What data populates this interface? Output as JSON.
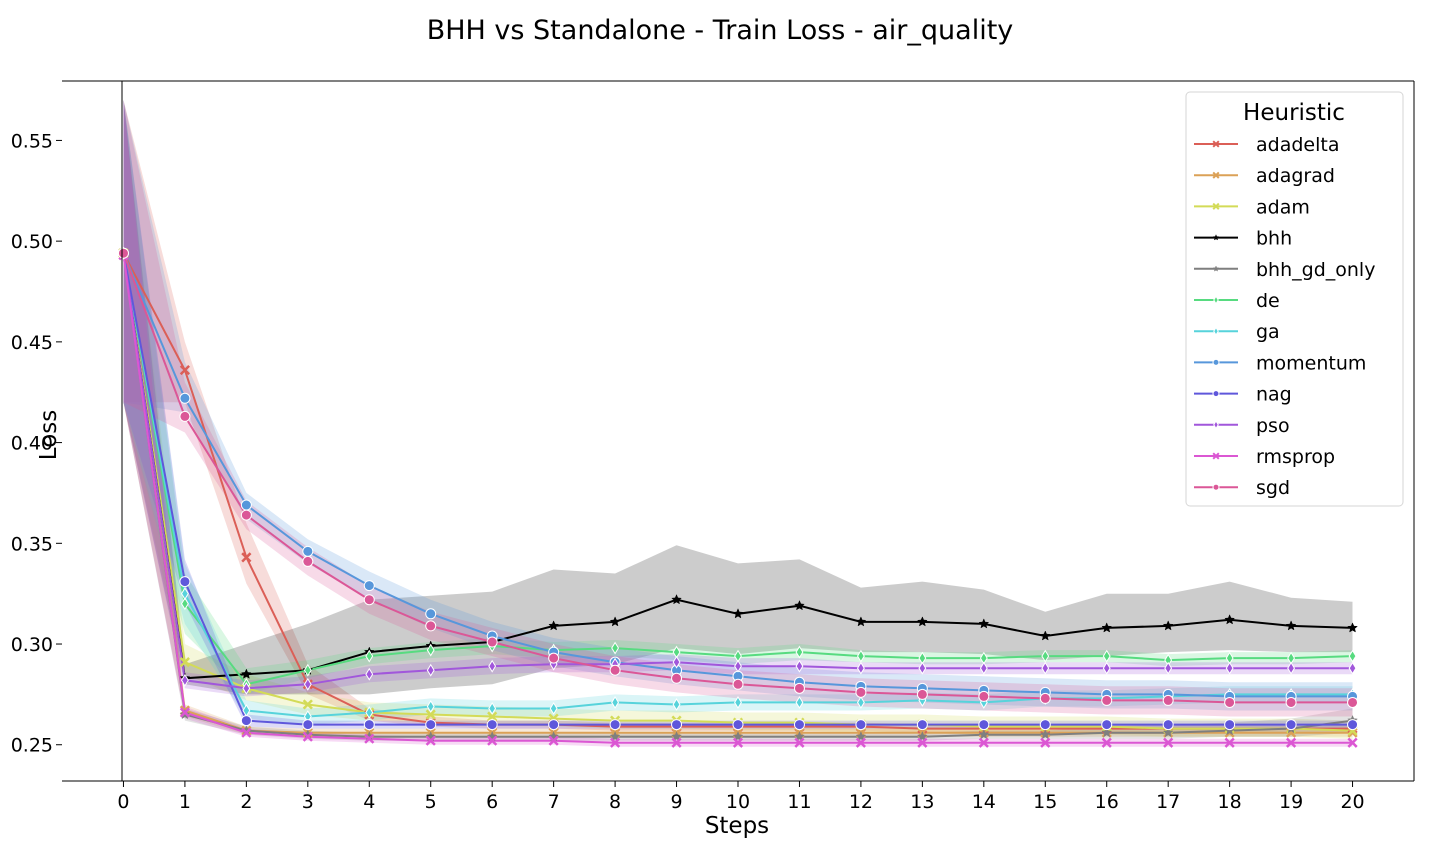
{
  "chart_data": {
    "type": "line",
    "title": "BHH vs Standalone - Train Loss - air_quality",
    "xlabel": "Steps",
    "ylabel": "Loss",
    "x": [
      0,
      1,
      2,
      3,
      4,
      5,
      6,
      7,
      8,
      9,
      10,
      11,
      12,
      13,
      14,
      15,
      16,
      17,
      18,
      19,
      20
    ],
    "xlim": [
      -1,
      21
    ],
    "ylim": [
      0.232,
      0.5795
    ],
    "yticks": [
      0.25,
      0.3,
      0.35,
      0.4,
      0.45,
      0.5,
      0.55
    ],
    "ytick_labels": [
      "0.25",
      "0.30",
      "0.35",
      "0.40",
      "0.45",
      "0.50",
      "0.55"
    ],
    "legend_title": "Heuristic",
    "legend_position": "top-right",
    "series": [
      {
        "name": "adadelta",
        "color": "#db5f57",
        "marker": "x",
        "values": [
          0.494,
          0.436,
          0.343,
          0.28,
          0.265,
          0.261,
          0.26,
          0.26,
          0.259,
          0.259,
          0.259,
          0.259,
          0.259,
          0.258,
          0.258,
          0.258,
          0.258,
          0.258,
          0.258,
          0.258,
          0.258
        ],
        "lower": [
          0.42,
          0.42,
          0.33,
          0.275,
          0.262,
          0.259,
          0.258,
          0.258,
          0.257,
          0.257,
          0.257,
          0.257,
          0.257,
          0.256,
          0.256,
          0.256,
          0.256,
          0.256,
          0.256,
          0.256,
          0.256
        ],
        "upper": [
          0.57,
          0.45,
          0.36,
          0.29,
          0.268,
          0.264,
          0.262,
          0.262,
          0.261,
          0.261,
          0.261,
          0.261,
          0.261,
          0.26,
          0.26,
          0.26,
          0.26,
          0.26,
          0.26,
          0.26,
          0.26
        ]
      },
      {
        "name": "adagrad",
        "color": "#dba157",
        "marker": "x",
        "values": [
          0.494,
          0.267,
          0.257,
          0.256,
          0.256,
          0.256,
          0.256,
          0.256,
          0.256,
          0.256,
          0.256,
          0.256,
          0.256,
          0.256,
          0.256,
          0.256,
          0.256,
          0.256,
          0.256,
          0.256,
          0.256
        ],
        "lower": [
          0.42,
          0.264,
          0.255,
          0.254,
          0.254,
          0.254,
          0.254,
          0.254,
          0.254,
          0.254,
          0.254,
          0.254,
          0.254,
          0.254,
          0.254,
          0.254,
          0.254,
          0.254,
          0.254,
          0.254,
          0.254
        ],
        "upper": [
          0.57,
          0.27,
          0.259,
          0.258,
          0.258,
          0.258,
          0.258,
          0.258,
          0.258,
          0.258,
          0.258,
          0.258,
          0.258,
          0.258,
          0.258,
          0.258,
          0.258,
          0.258,
          0.258,
          0.258,
          0.258
        ]
      },
      {
        "name": "adam",
        "color": "#d3db57",
        "marker": "x",
        "values": [
          0.494,
          0.291,
          0.278,
          0.27,
          0.266,
          0.265,
          0.264,
          0.263,
          0.262,
          0.262,
          0.261,
          0.261,
          0.26,
          0.26,
          0.259,
          0.259,
          0.259,
          0.258,
          0.258,
          0.258,
          0.257
        ],
        "lower": [
          0.42,
          0.285,
          0.272,
          0.265,
          0.262,
          0.261,
          0.26,
          0.259,
          0.258,
          0.258,
          0.257,
          0.257,
          0.256,
          0.256,
          0.255,
          0.255,
          0.255,
          0.254,
          0.254,
          0.254,
          0.253
        ],
        "upper": [
          0.57,
          0.3,
          0.285,
          0.276,
          0.271,
          0.27,
          0.269,
          0.268,
          0.267,
          0.267,
          0.266,
          0.266,
          0.265,
          0.265,
          0.264,
          0.264,
          0.264,
          0.263,
          0.263,
          0.263,
          0.262
        ]
      },
      {
        "name": "bhh",
        "color": "#000000",
        "marker": "star",
        "values": [
          0.494,
          0.283,
          0.285,
          0.287,
          0.296,
          0.299,
          0.301,
          0.309,
          0.311,
          0.322,
          0.315,
          0.319,
          0.311,
          0.311,
          0.31,
          0.304,
          0.308,
          0.309,
          0.312,
          0.309,
          0.308
        ],
        "lower": [
          0.42,
          0.28,
          0.275,
          0.275,
          0.275,
          0.278,
          0.28,
          0.288,
          0.29,
          0.298,
          0.295,
          0.298,
          0.296,
          0.296,
          0.295,
          0.292,
          0.294,
          0.296,
          0.297,
          0.296,
          0.296
        ],
        "upper": [
          0.57,
          0.29,
          0.3,
          0.31,
          0.322,
          0.324,
          0.326,
          0.337,
          0.335,
          0.349,
          0.34,
          0.342,
          0.328,
          0.331,
          0.327,
          0.316,
          0.325,
          0.325,
          0.331,
          0.323,
          0.321
        ]
      },
      {
        "name": "bhh_gd_only",
        "color": "#7f7f7f",
        "marker": "star",
        "values": [
          0.494,
          0.265,
          0.257,
          0.255,
          0.254,
          0.254,
          0.254,
          0.254,
          0.254,
          0.254,
          0.254,
          0.254,
          0.254,
          0.254,
          0.255,
          0.255,
          0.256,
          0.256,
          0.257,
          0.258,
          0.262
        ],
        "lower": [
          0.42,
          0.262,
          0.255,
          0.253,
          0.252,
          0.252,
          0.252,
          0.252,
          0.252,
          0.252,
          0.252,
          0.252,
          0.252,
          0.252,
          0.253,
          0.253,
          0.253,
          0.253,
          0.254,
          0.254,
          0.256
        ],
        "upper": [
          0.57,
          0.268,
          0.259,
          0.257,
          0.256,
          0.256,
          0.256,
          0.256,
          0.256,
          0.256,
          0.256,
          0.256,
          0.256,
          0.256,
          0.257,
          0.257,
          0.259,
          0.26,
          0.261,
          0.263,
          0.268
        ]
      },
      {
        "name": "de",
        "color": "#57db80",
        "marker": "diamond",
        "values": [
          0.494,
          0.32,
          0.28,
          0.287,
          0.294,
          0.297,
          0.299,
          0.297,
          0.298,
          0.296,
          0.294,
          0.296,
          0.294,
          0.293,
          0.293,
          0.294,
          0.294,
          0.292,
          0.293,
          0.293,
          0.294
        ],
        "lower": [
          0.42,
          0.305,
          0.275,
          0.283,
          0.29,
          0.293,
          0.295,
          0.293,
          0.294,
          0.292,
          0.29,
          0.292,
          0.291,
          0.29,
          0.29,
          0.291,
          0.291,
          0.289,
          0.29,
          0.29,
          0.291
        ],
        "upper": [
          0.57,
          0.335,
          0.288,
          0.292,
          0.298,
          0.301,
          0.303,
          0.301,
          0.302,
          0.3,
          0.298,
          0.3,
          0.297,
          0.296,
          0.296,
          0.297,
          0.297,
          0.295,
          0.296,
          0.296,
          0.297
        ]
      },
      {
        "name": "ga",
        "color": "#57d3db",
        "marker": "diamond",
        "values": [
          0.494,
          0.325,
          0.267,
          0.264,
          0.266,
          0.269,
          0.268,
          0.268,
          0.271,
          0.27,
          0.271,
          0.271,
          0.271,
          0.272,
          0.271,
          0.273,
          0.273,
          0.274,
          0.275,
          0.275,
          0.275
        ],
        "lower": [
          0.42,
          0.31,
          0.263,
          0.26,
          0.262,
          0.265,
          0.264,
          0.264,
          0.267,
          0.266,
          0.267,
          0.267,
          0.267,
          0.268,
          0.267,
          0.269,
          0.269,
          0.27,
          0.271,
          0.271,
          0.271
        ],
        "upper": [
          0.57,
          0.34,
          0.272,
          0.268,
          0.27,
          0.273,
          0.272,
          0.272,
          0.275,
          0.274,
          0.275,
          0.275,
          0.275,
          0.276,
          0.275,
          0.277,
          0.277,
          0.278,
          0.279,
          0.279,
          0.279
        ]
      },
      {
        "name": "momentum",
        "color": "#5797db",
        "marker": "circle",
        "values": [
          0.494,
          0.422,
          0.369,
          0.346,
          0.329,
          0.315,
          0.304,
          0.296,
          0.291,
          0.287,
          0.284,
          0.281,
          0.279,
          0.278,
          0.277,
          0.276,
          0.275,
          0.275,
          0.274,
          0.274,
          0.274
        ],
        "lower": [
          0.42,
          0.415,
          0.362,
          0.34,
          0.322,
          0.308,
          0.297,
          0.289,
          0.284,
          0.28,
          0.277,
          0.274,
          0.272,
          0.271,
          0.27,
          0.269,
          0.268,
          0.268,
          0.267,
          0.267,
          0.267
        ],
        "upper": [
          0.57,
          0.44,
          0.375,
          0.352,
          0.336,
          0.322,
          0.311,
          0.303,
          0.298,
          0.294,
          0.291,
          0.288,
          0.286,
          0.285,
          0.284,
          0.283,
          0.282,
          0.282,
          0.281,
          0.281,
          0.281
        ]
      },
      {
        "name": "nag",
        "color": "#5f57db",
        "marker": "circle",
        "values": [
          0.494,
          0.331,
          0.262,
          0.26,
          0.26,
          0.26,
          0.26,
          0.26,
          0.26,
          0.26,
          0.26,
          0.26,
          0.26,
          0.26,
          0.26,
          0.26,
          0.26,
          0.26,
          0.26,
          0.26,
          0.26
        ],
        "lower": [
          0.42,
          0.32,
          0.259,
          0.258,
          0.258,
          0.258,
          0.258,
          0.258,
          0.258,
          0.258,
          0.258,
          0.258,
          0.258,
          0.258,
          0.258,
          0.258,
          0.258,
          0.258,
          0.258,
          0.258,
          0.258
        ],
        "upper": [
          0.57,
          0.342,
          0.265,
          0.262,
          0.262,
          0.262,
          0.262,
          0.262,
          0.262,
          0.262,
          0.262,
          0.262,
          0.262,
          0.262,
          0.262,
          0.262,
          0.262,
          0.262,
          0.262,
          0.262,
          0.262
        ]
      },
      {
        "name": "pso",
        "color": "#a157db",
        "marker": "diamond",
        "values": [
          0.494,
          0.282,
          0.278,
          0.28,
          0.285,
          0.287,
          0.289,
          0.29,
          0.29,
          0.291,
          0.289,
          0.289,
          0.288,
          0.288,
          0.288,
          0.288,
          0.288,
          0.288,
          0.288,
          0.288,
          0.288
        ],
        "lower": [
          0.42,
          0.278,
          0.274,
          0.276,
          0.281,
          0.283,
          0.285,
          0.286,
          0.286,
          0.287,
          0.285,
          0.285,
          0.285,
          0.285,
          0.285,
          0.285,
          0.285,
          0.285,
          0.285,
          0.285,
          0.285
        ],
        "upper": [
          0.57,
          0.286,
          0.282,
          0.284,
          0.289,
          0.291,
          0.293,
          0.294,
          0.294,
          0.295,
          0.293,
          0.293,
          0.291,
          0.291,
          0.291,
          0.291,
          0.291,
          0.291,
          0.291,
          0.291,
          0.291
        ]
      },
      {
        "name": "rmsprop",
        "color": "#db57d3",
        "marker": "x",
        "values": [
          0.493,
          0.266,
          0.256,
          0.254,
          0.253,
          0.252,
          0.252,
          0.252,
          0.251,
          0.251,
          0.251,
          0.251,
          0.251,
          0.251,
          0.251,
          0.251,
          0.251,
          0.251,
          0.251,
          0.251,
          0.251
        ],
        "lower": [
          0.42,
          0.263,
          0.254,
          0.252,
          0.251,
          0.25,
          0.25,
          0.25,
          0.249,
          0.249,
          0.249,
          0.249,
          0.249,
          0.249,
          0.249,
          0.249,
          0.249,
          0.249,
          0.249,
          0.249,
          0.249
        ],
        "upper": [
          0.57,
          0.269,
          0.258,
          0.256,
          0.255,
          0.254,
          0.254,
          0.254,
          0.253,
          0.253,
          0.253,
          0.253,
          0.253,
          0.253,
          0.253,
          0.253,
          0.253,
          0.253,
          0.253,
          0.253,
          0.253
        ]
      },
      {
        "name": "sgd",
        "color": "#db5797",
        "marker": "circle",
        "values": [
          0.494,
          0.413,
          0.364,
          0.341,
          0.322,
          0.309,
          0.301,
          0.293,
          0.287,
          0.283,
          0.28,
          0.278,
          0.276,
          0.275,
          0.274,
          0.273,
          0.272,
          0.272,
          0.271,
          0.271,
          0.271
        ],
        "lower": [
          0.42,
          0.405,
          0.357,
          0.334,
          0.315,
          0.302,
          0.294,
          0.286,
          0.28,
          0.276,
          0.273,
          0.271,
          0.269,
          0.268,
          0.267,
          0.266,
          0.265,
          0.265,
          0.264,
          0.264,
          0.264
        ],
        "upper": [
          0.57,
          0.43,
          0.371,
          0.348,
          0.329,
          0.316,
          0.308,
          0.3,
          0.294,
          0.29,
          0.287,
          0.285,
          0.283,
          0.282,
          0.281,
          0.28,
          0.279,
          0.279,
          0.278,
          0.278,
          0.278
        ]
      }
    ]
  }
}
